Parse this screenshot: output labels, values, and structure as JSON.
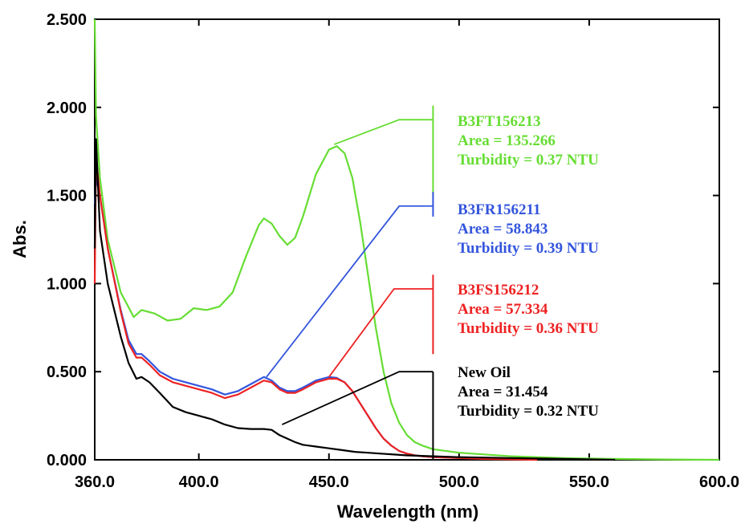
{
  "chart_data": {
    "type": "line",
    "xlabel": "Wavelength (nm)",
    "ylabel": "Abs.",
    "xlim": [
      360,
      600
    ],
    "ylim": [
      0,
      2.5
    ],
    "x_ticks": [
      "360.0",
      "400.0",
      "450.0",
      "500.0",
      "550.0",
      "600.0"
    ],
    "y_ticks": [
      "0.000",
      "0.500",
      "1.000",
      "1.500",
      "2.000",
      "2.500"
    ],
    "grid": false,
    "series": [
      {
        "name": "B3FT156213",
        "color": "#66dd33",
        "x": [
          360,
          360.5,
          362,
          365,
          370,
          375,
          378,
          383,
          388,
          393,
          398,
          403,
          408,
          413,
          418,
          423,
          425,
          428,
          431,
          434,
          437,
          440,
          445,
          450,
          453,
          456,
          459,
          462,
          465,
          468,
          471,
          474,
          477,
          480,
          483,
          486,
          490,
          500,
          520,
          540,
          560,
          580,
          600
        ],
        "y": [
          2.5,
          1.95,
          1.6,
          1.25,
          0.95,
          0.81,
          0.85,
          0.83,
          0.79,
          0.8,
          0.86,
          0.85,
          0.87,
          0.95,
          1.15,
          1.33,
          1.37,
          1.34,
          1.27,
          1.22,
          1.26,
          1.38,
          1.62,
          1.76,
          1.78,
          1.74,
          1.6,
          1.35,
          1.05,
          0.75,
          0.5,
          0.32,
          0.21,
          0.14,
          0.1,
          0.08,
          0.06,
          0.04,
          0.02,
          0.01,
          0.005,
          0.002,
          0.0
        ]
      },
      {
        "name": "B3FR156211",
        "color": "#3355dd",
        "x": [
          360,
          360.5,
          362,
          365,
          370,
          373,
          376,
          378,
          381,
          385,
          390,
          395,
          400,
          405,
          410,
          415,
          420,
          425,
          428,
          431,
          434,
          437,
          440,
          445,
          450,
          453,
          456,
          459,
          462,
          465,
          468,
          471,
          474,
          477,
          480,
          483,
          486,
          490,
          500,
          510
        ],
        "y": [
          1.45,
          1.6,
          1.5,
          1.2,
          0.85,
          0.68,
          0.6,
          0.6,
          0.56,
          0.5,
          0.46,
          0.44,
          0.42,
          0.4,
          0.37,
          0.39,
          0.43,
          0.47,
          0.45,
          0.41,
          0.39,
          0.39,
          0.41,
          0.45,
          0.47,
          0.465,
          0.44,
          0.39,
          0.32,
          0.25,
          0.18,
          0.12,
          0.08,
          0.05,
          0.035,
          0.025,
          0.02,
          0.015,
          0.01,
          0.005
        ]
      },
      {
        "name": "B3FS156212",
        "color": "#ee2222",
        "x": [
          360,
          360.5,
          362,
          365,
          370,
          373,
          376,
          378,
          381,
          385,
          390,
          395,
          400,
          405,
          410,
          415,
          420,
          425,
          428,
          431,
          434,
          437,
          440,
          445,
          450,
          453,
          456,
          459,
          462,
          465,
          468,
          471,
          474,
          477,
          480,
          483,
          486,
          490,
          500,
          510,
          530
        ],
        "y": [
          1.0,
          1.72,
          1.5,
          1.2,
          0.84,
          0.66,
          0.58,
          0.58,
          0.54,
          0.48,
          0.44,
          0.42,
          0.4,
          0.38,
          0.35,
          0.37,
          0.41,
          0.45,
          0.44,
          0.4,
          0.38,
          0.38,
          0.4,
          0.44,
          0.46,
          0.46,
          0.44,
          0.39,
          0.32,
          0.25,
          0.18,
          0.12,
          0.08,
          0.05,
          0.035,
          0.025,
          0.02,
          0.015,
          0.01,
          0.005,
          0.0
        ]
      },
      {
        "name": "New Oil",
        "color": "#000000",
        "x": [
          360,
          360.5,
          362,
          365,
          370,
          373,
          376,
          378,
          381,
          385,
          390,
          395,
          400,
          405,
          410,
          415,
          420,
          425,
          428,
          431,
          434,
          437,
          440,
          445,
          450,
          455,
          460,
          465,
          470,
          475,
          480,
          490,
          500,
          520,
          540,
          560
        ],
        "y": [
          1.2,
          1.82,
          1.3,
          1.0,
          0.7,
          0.55,
          0.46,
          0.47,
          0.44,
          0.38,
          0.3,
          0.27,
          0.25,
          0.23,
          0.2,
          0.18,
          0.175,
          0.175,
          0.17,
          0.14,
          0.12,
          0.1,
          0.085,
          0.075,
          0.065,
          0.055,
          0.045,
          0.04,
          0.035,
          0.03,
          0.025,
          0.02,
          0.015,
          0.01,
          0.005,
          0.0
        ]
      }
    ],
    "annotations": [
      {
        "series": "B3FT156213",
        "color": "#66dd33",
        "lines": [
          "B3FT156213",
          "Area = 135.266",
          "Turbidity = 0.37 NTU"
        ]
      },
      {
        "series": "B3FR156211",
        "color": "#3355dd",
        "lines": [
          "B3FR156211",
          "Area = 58.843",
          "Turbidity = 0.39 NTU"
        ]
      },
      {
        "series": "B3FS156212",
        "color": "#ee2222",
        "lines": [
          "B3FS156212",
          "Area = 57.334",
          "Turbidity = 0.36 NTU"
        ]
      },
      {
        "series": "New Oil",
        "color": "#000000",
        "lines": [
          "New Oil",
          "Area = 31.454",
          "Turbidity = 0.32 NTU"
        ]
      }
    ]
  }
}
